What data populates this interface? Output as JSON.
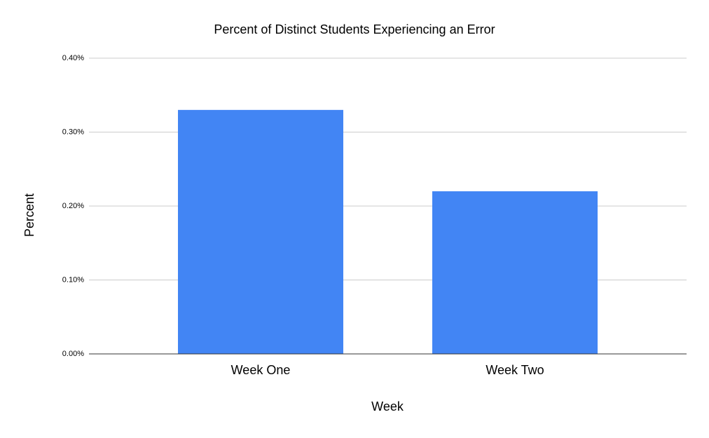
{
  "chart_data": {
    "type": "bar",
    "title": "Percent of Distinct Students Experiencing an Error",
    "x_label": "Week",
    "y_label": "Percent",
    "categories": [
      "Week One",
      "Week Two"
    ],
    "values": [
      0.33,
      0.22
    ],
    "color": "#4285f4",
    "ylim": [
      0,
      0.4
    ],
    "yticks": [
      {
        "value": 0,
        "label": "0.00%"
      },
      {
        "value": 0.1,
        "label": "0.10%"
      },
      {
        "value": 0.2,
        "label": "0.20%"
      },
      {
        "value": 0.3,
        "label": "0.30%"
      },
      {
        "value": 0.4,
        "label": "0.40%"
      }
    ],
    "grid": true
  }
}
